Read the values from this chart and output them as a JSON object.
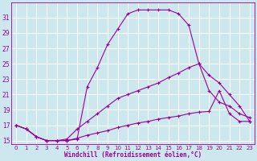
{
  "xlabel": "Windchill (Refroidissement éolien,°C)",
  "background_color": "#cce8ee",
  "line_color": "#990099",
  "grid_color": "#ffffff",
  "xlim": [
    -0.5,
    23.5
  ],
  "ylim": [
    14.5,
    33.0
  ],
  "yticks": [
    15,
    17,
    19,
    21,
    23,
    25,
    27,
    29,
    31
  ],
  "xticks": [
    0,
    1,
    2,
    3,
    4,
    5,
    6,
    7,
    8,
    9,
    10,
    11,
    12,
    13,
    14,
    15,
    16,
    17,
    18,
    19,
    20,
    21,
    22,
    23
  ],
  "line1_x": [
    0,
    1,
    2,
    3,
    4,
    5,
    6,
    7,
    8,
    9,
    10,
    11,
    12,
    13,
    14,
    15,
    16,
    17,
    18,
    19,
    20,
    21,
    22,
    23
  ],
  "line1_y": [
    17.0,
    16.5,
    15.5,
    15.0,
    15.0,
    15.0,
    15.2,
    22.0,
    24.5,
    27.5,
    29.5,
    31.5,
    32.0,
    32.0,
    32.0,
    32.0,
    31.5,
    30.0,
    25.0,
    23.5,
    22.5,
    21.0,
    19.5,
    17.5
  ],
  "line2_x": [
    0,
    1,
    2,
    3,
    4,
    5,
    6,
    7,
    8,
    9,
    10,
    11,
    12,
    13,
    14,
    15,
    16,
    17,
    18,
    19,
    20,
    21,
    22,
    23
  ],
  "line2_y": [
    17.0,
    16.5,
    15.5,
    15.0,
    15.0,
    15.2,
    16.5,
    17.5,
    18.5,
    19.5,
    20.5,
    21.0,
    21.5,
    22.0,
    22.5,
    23.2,
    23.8,
    24.5,
    25.0,
    21.5,
    20.0,
    19.5,
    18.5,
    18.0
  ],
  "line3_x": [
    0,
    1,
    2,
    3,
    4,
    5,
    6,
    7,
    8,
    9,
    10,
    11,
    12,
    13,
    14,
    15,
    16,
    17,
    18,
    19,
    20,
    21,
    22,
    23
  ],
  "line3_y": [
    17.0,
    16.5,
    15.5,
    15.0,
    15.0,
    15.0,
    15.3,
    15.7,
    16.0,
    16.3,
    16.7,
    17.0,
    17.3,
    17.5,
    17.8,
    18.0,
    18.2,
    18.5,
    18.7,
    18.8,
    21.5,
    18.5,
    17.5,
    17.5
  ]
}
